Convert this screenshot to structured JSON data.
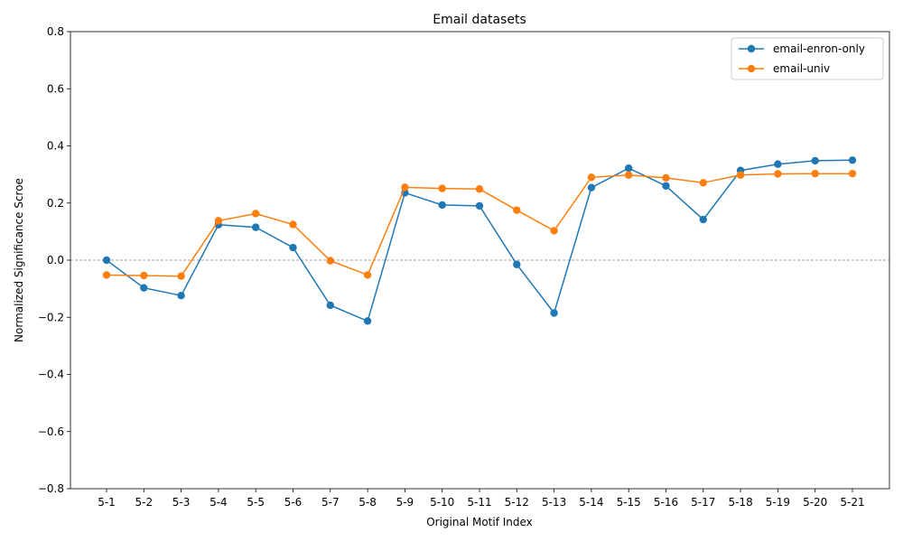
{
  "chart_data": {
    "type": "line",
    "title": "Email datasets",
    "xlabel": "Original Motif Index",
    "ylabel": "Normalized Significance Scroe",
    "ylim": [
      -0.8,
      0.8
    ],
    "yticks": [
      -0.8,
      -0.6,
      -0.4,
      -0.2,
      0.0,
      0.2,
      0.4,
      0.6,
      0.8
    ],
    "ytick_labels": [
      "−0.8",
      "−0.6",
      "−0.4",
      "−0.2",
      "0.0",
      "0.2",
      "0.4",
      "0.6",
      "0.8"
    ],
    "categories": [
      "5-1",
      "5-2",
      "5-3",
      "5-4",
      "5-5",
      "5-6",
      "5-7",
      "5-8",
      "5-9",
      "5-10",
      "5-11",
      "5-12",
      "5-13",
      "5-14",
      "5-15",
      "5-16",
      "5-17",
      "5-18",
      "5-19",
      "5-20",
      "5-21"
    ],
    "reference_line": 0.0,
    "grid": false,
    "legend_position": "top-right",
    "series": [
      {
        "name": "email-enron-only",
        "color": "#1f77b4",
        "values": [
          0.0,
          -0.097,
          -0.124,
          0.124,
          0.115,
          0.044,
          -0.158,
          -0.213,
          0.236,
          0.193,
          0.19,
          -0.015,
          -0.185,
          0.254,
          0.322,
          0.26,
          0.142,
          0.314,
          0.336,
          0.348,
          0.35
        ]
      },
      {
        "name": "email-univ",
        "color": "#ff7f0e",
        "values": [
          -0.052,
          -0.054,
          -0.056,
          0.138,
          0.163,
          0.125,
          -0.002,
          -0.052,
          0.255,
          0.251,
          0.249,
          0.175,
          0.103,
          0.29,
          0.298,
          0.288,
          0.271,
          0.298,
          0.302,
          0.303,
          0.303
        ]
      }
    ]
  }
}
